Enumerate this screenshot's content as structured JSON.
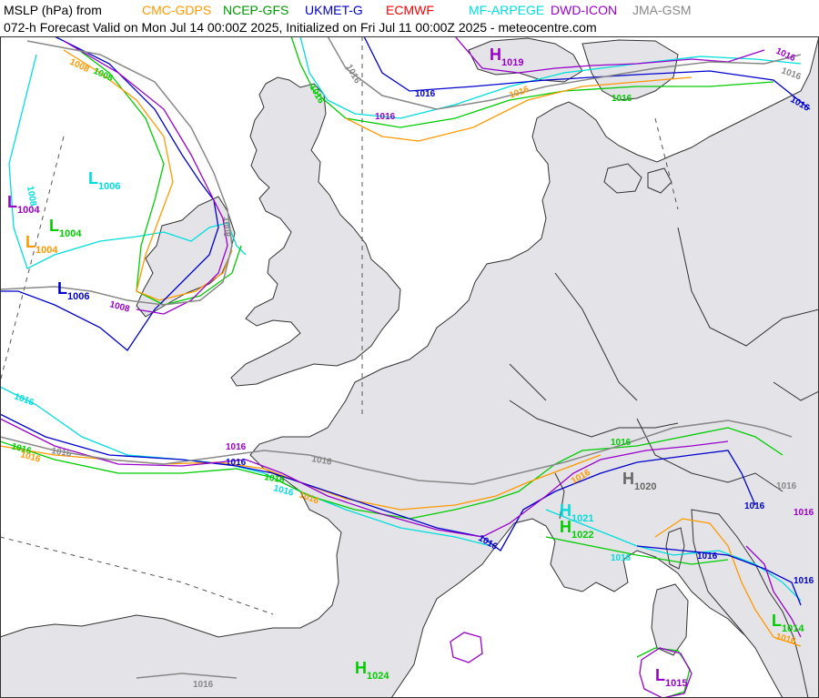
{
  "header": {
    "title_prefix": "MSLP (hPa) from",
    "models": [
      {
        "name": "CMC-GDPS",
        "color": "#ff9900"
      },
      {
        "name": "NCEP-GFS",
        "color": "#009900"
      },
      {
        "name": "UKMET-G",
        "color": "#0000cc"
      },
      {
        "name": "ECMWF",
        "color": "#ff0000"
      },
      {
        "name": "MF-ARPEGE",
        "color": "#00dddd"
      },
      {
        "name": "DWD-ICON",
        "color": "#9900cc"
      },
      {
        "name": "JMA-GSM",
        "color": "#888888"
      }
    ],
    "subtitle": "072-h Forecast Valid on Mon Jul 14 00:00Z 2025, Initialized on Fri Jul 11 00:00Z 2025 - meteocentre.com"
  },
  "colors": {
    "land": "#e3e3e8",
    "sea": "#ffffff",
    "border": "#333333"
  },
  "centers": [
    {
      "type": "L",
      "value": "1006",
      "color": "#00dddd"
    },
    {
      "type": "L",
      "value": "1004",
      "color": "#9900cc"
    },
    {
      "type": "L",
      "value": "1004",
      "color": "#00cc00"
    },
    {
      "type": "L",
      "value": "1004",
      "color": "#ff9900"
    },
    {
      "type": "L",
      "value": "1006",
      "color": "#0000cc"
    },
    {
      "type": "H",
      "value": "1019",
      "color": "#9900cc"
    },
    {
      "type": "H",
      "value": "1020",
      "color": "#666666"
    },
    {
      "type": "H",
      "value": "1021",
      "color": "#00dddd"
    },
    {
      "type": "H",
      "value": "1022",
      "color": "#00cc00"
    },
    {
      "type": "H",
      "value": "1024",
      "color": "#00cc00"
    },
    {
      "type": "L",
      "value": "1014",
      "color": "#00cc00"
    },
    {
      "type": "L",
      "value": "1015",
      "color": "#9900cc"
    }
  ],
  "contour_labels": [
    {
      "text": "1016",
      "color": "#888888"
    },
    {
      "text": "1016",
      "color": "#00cc00"
    },
    {
      "text": "1016",
      "color": "#0000cc"
    },
    {
      "text": "1016",
      "color": "#9900cc"
    },
    {
      "text": "1016",
      "color": "#ff9900"
    },
    {
      "text": "1016",
      "color": "#00cc00"
    },
    {
      "text": "1016",
      "color": "#0000cc"
    },
    {
      "text": "1008",
      "color": "#ff9900"
    },
    {
      "text": "1008",
      "color": "#00cc00"
    },
    {
      "text": "1008",
      "color": "#888888"
    },
    {
      "text": "1008",
      "color": "#9900cc"
    },
    {
      "text": "1008",
      "color": "#00dddd"
    },
    {
      "text": "1016",
      "color": "#00dddd"
    },
    {
      "text": "1016",
      "color": "#00cc00"
    },
    {
      "text": "1016",
      "color": "#ff9900"
    },
    {
      "text": "1016",
      "color": "#888888"
    },
    {
      "text": "1016",
      "color": "#888888"
    },
    {
      "text": "1016",
      "color": "#9900cc"
    },
    {
      "text": "1016",
      "color": "#0000cc"
    },
    {
      "text": "1016",
      "color": "#00cc00"
    },
    {
      "text": "1016",
      "color": "#00dddd"
    },
    {
      "text": "1016",
      "color": "#ff9900"
    },
    {
      "text": "1016",
      "color": "#0000cc"
    },
    {
      "text": "1016",
      "color": "#00cc00"
    },
    {
      "text": "1016",
      "color": "#ff9900"
    },
    {
      "text": "1016",
      "color": "#00dddd"
    },
    {
      "text": "1016",
      "color": "#0000cc"
    },
    {
      "text": "1016",
      "color": "#888888"
    },
    {
      "text": "1016",
      "color": "#0000cc"
    },
    {
      "text": "1016",
      "color": "#9900cc"
    },
    {
      "text": "1016",
      "color": "#0000cc"
    },
    {
      "text": "1016",
      "color": "#ff9900"
    },
    {
      "text": "1016",
      "color": "#888888"
    },
    {
      "text": "1016",
      "color": "#888888"
    },
    {
      "text": "1016",
      "color": "#9900cc"
    }
  ]
}
